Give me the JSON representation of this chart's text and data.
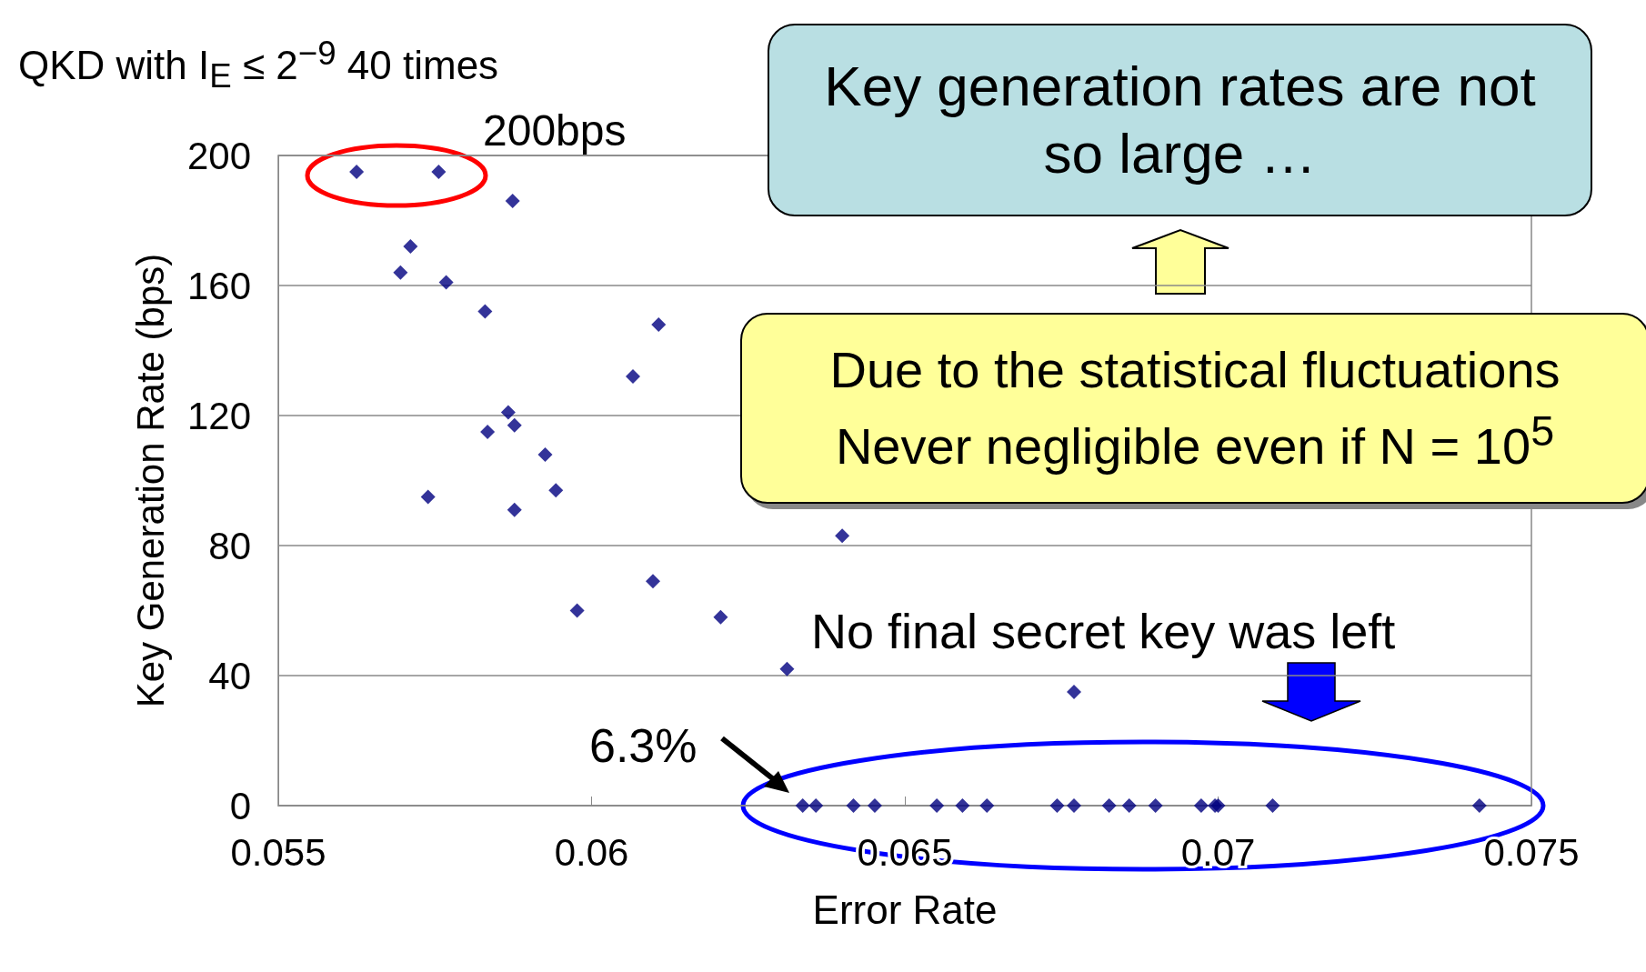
{
  "chart_data": {
    "type": "scatter",
    "title": "QKD with I$_{E}$ ≤ 2$^{−9}$ 40 times",
    "xlabel": "Error Rate",
    "ylabel": "Key Generation Rate (bps)",
    "x": [
      0.05625,
      0.05756,
      0.05874,
      0.05711,
      0.05695,
      0.05768,
      0.0583,
      0.06107,
      0.06066,
      0.05867,
      0.05877,
      0.05834,
      0.05926,
      0.05943,
      0.05739,
      0.05877,
      0.064,
      0.06098,
      0.05977,
      0.06206,
      0.06312,
      0.0677,
      0.06337,
      0.06358,
      0.06418,
      0.06452,
      0.06551,
      0.06592,
      0.06631,
      0.06743,
      0.0677,
      0.06826,
      0.06858,
      0.069,
      0.06973,
      0.06995,
      0.07,
      0.07087,
      0.07417
    ],
    "values": [
      195,
      195,
      186,
      172,
      164,
      161,
      152,
      148,
      132,
      121,
      117,
      115,
      108,
      97,
      95,
      91,
      83,
      69,
      60,
      58,
      42,
      35,
      0,
      0,
      0,
      0,
      0,
      0,
      0,
      0,
      0,
      0,
      0,
      0,
      0,
      0,
      0,
      0,
      0
    ],
    "color": "#000080",
    "marker": "diamond",
    "xlim": [
      0.055,
      0.075
    ],
    "xticks": [
      0.055,
      0.06,
      0.065,
      0.07,
      0.075
    ],
    "ylim": [
      0,
      200
    ],
    "yticks": [
      0,
      40,
      80,
      120,
      160,
      200
    ],
    "grid": "y",
    "annotations": [
      "200bps",
      "Key generation rates are not so large …",
      "Due to the statistical fluctuations Never negligible even if N = 10$^{5}$",
      "No final secret key was left",
      "6.3%"
    ]
  }
}
